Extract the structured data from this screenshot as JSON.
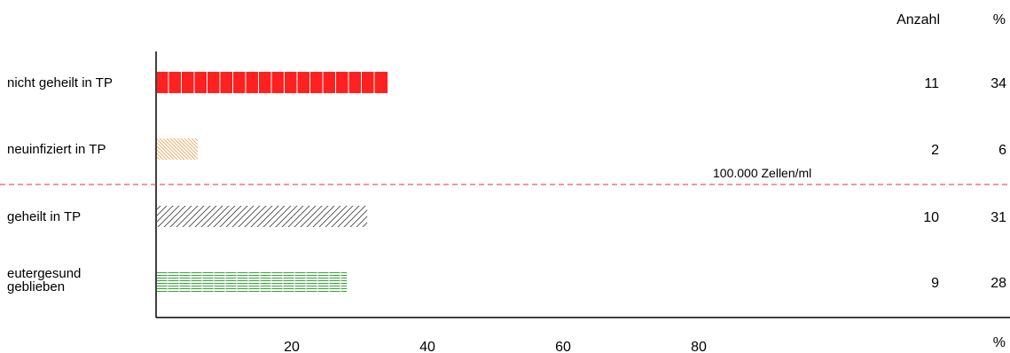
{
  "chart_data": {
    "type": "bar",
    "orientation": "horizontal",
    "categories": [
      [
        "nicht geheilt in TP"
      ],
      [
        "neuinfiziert in TP"
      ],
      [
        "geheilt in TP"
      ],
      [
        "eutergesund",
        "geblieben"
      ]
    ],
    "values": [
      34,
      6,
      31,
      28
    ],
    "counts": [
      11,
      2,
      10,
      9
    ],
    "percent_labels": [
      "34",
      "6",
      "31",
      "28"
    ],
    "count_labels": [
      "11",
      "2",
      "10",
      "9"
    ],
    "column_headers": {
      "count": "Anzahl",
      "percent": "%"
    },
    "xlabel": "%",
    "xticks": [
      20,
      40,
      60,
      80
    ],
    "xlim": [
      0,
      100
    ],
    "threshold_label": "100.000 Zellen/ml",
    "bar_styles": [
      {
        "fill": "#ff2020",
        "pattern": "solid-segmented",
        "color": "#ff2020"
      },
      {
        "fill": "none",
        "pattern": "hatch-backslash",
        "color": "#f0a050"
      },
      {
        "fill": "none",
        "pattern": "hatch-slash",
        "color": "#404040"
      },
      {
        "fill": "none",
        "pattern": "horizontal-lines",
        "color": "#3aa03a"
      }
    ],
    "threshold_color": "#e03030",
    "grid": false
  }
}
